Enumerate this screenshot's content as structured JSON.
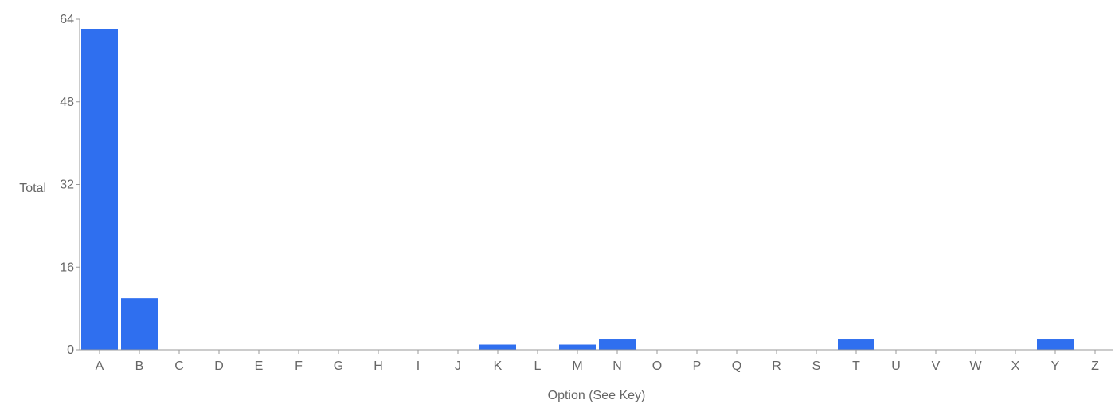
{
  "chart_data": {
    "type": "bar",
    "categories": [
      "A",
      "B",
      "C",
      "D",
      "E",
      "F",
      "G",
      "H",
      "I",
      "J",
      "K",
      "L",
      "M",
      "N",
      "O",
      "P",
      "Q",
      "R",
      "S",
      "T",
      "U",
      "V",
      "W",
      "X",
      "Y",
      "Z"
    ],
    "values": [
      62,
      10,
      0,
      0,
      0,
      0,
      0,
      0,
      0,
      0,
      1,
      0,
      1,
      2,
      0,
      0,
      0,
      0,
      0,
      2,
      0,
      0,
      0,
      0,
      2,
      0
    ],
    "title": "",
    "xlabel": "Option (See Key)",
    "ylabel": "Total",
    "ylim": [
      0,
      64
    ],
    "yticks": [
      0,
      16,
      32,
      48,
      64
    ],
    "ytick_labels": [
      "0",
      "16",
      "32",
      "48",
      "64"
    ],
    "grid": false,
    "colors": {
      "bar": "#2f6fef",
      "axis": "#999999",
      "text": "#666666"
    }
  }
}
